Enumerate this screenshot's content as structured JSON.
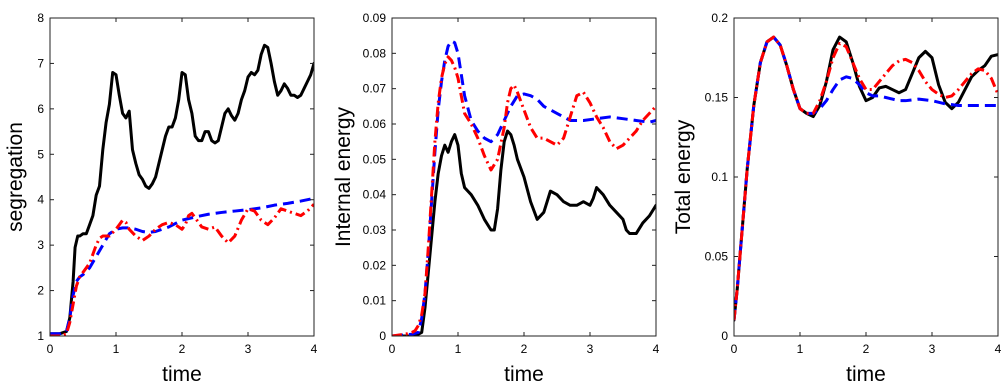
{
  "chart_data": [
    {
      "type": "line",
      "xlabel": "time",
      "ylabel": "segregation",
      "xlim": [
        0,
        4
      ],
      "ylim": [
        1,
        8
      ],
      "xticks": [
        "0",
        "1",
        "2",
        "3",
        "4"
      ],
      "yticks": [
        "1",
        "2",
        "3",
        "4",
        "5",
        "6",
        "7",
        "8"
      ],
      "grid": false,
      "series": [
        {
          "color": "#000000",
          "style": "solid",
          "x": [
            0,
            0.15,
            0.25,
            0.3,
            0.35,
            0.38,
            0.42,
            0.45,
            0.5,
            0.55,
            0.6,
            0.65,
            0.7,
            0.75,
            0.8,
            0.85,
            0.9,
            0.95,
            1.0,
            1.05,
            1.1,
            1.15,
            1.2,
            1.25,
            1.3,
            1.35,
            1.4,
            1.45,
            1.5,
            1.55,
            1.6,
            1.65,
            1.7,
            1.75,
            1.8,
            1.85,
            1.9,
            1.95,
            2.0,
            2.05,
            2.1,
            2.15,
            2.2,
            2.25,
            2.3,
            2.35,
            2.4,
            2.45,
            2.5,
            2.55,
            2.6,
            2.65,
            2.7,
            2.75,
            2.8,
            2.85,
            2.9,
            2.95,
            3.0,
            3.05,
            3.1,
            3.15,
            3.2,
            3.25,
            3.3,
            3.35,
            3.4,
            3.45,
            3.5,
            3.55,
            3.6,
            3.65,
            3.7,
            3.75,
            3.8,
            3.85,
            3.9,
            3.95,
            4.0
          ],
          "y": [
            1.05,
            1.05,
            1.1,
            1.4,
            2.2,
            2.95,
            3.2,
            3.2,
            3.25,
            3.25,
            3.45,
            3.65,
            4.1,
            4.3,
            5.1,
            5.7,
            6.1,
            6.8,
            6.75,
            6.3,
            5.9,
            5.8,
            5.95,
            5.1,
            4.8,
            4.55,
            4.45,
            4.3,
            4.25,
            4.35,
            4.5,
            4.8,
            5.1,
            5.4,
            5.6,
            5.6,
            5.8,
            6.2,
            6.8,
            6.75,
            6.2,
            5.9,
            5.4,
            5.3,
            5.3,
            5.5,
            5.5,
            5.3,
            5.25,
            5.3,
            5.6,
            5.9,
            6.0,
            5.85,
            5.75,
            5.9,
            6.2,
            6.4,
            6.7,
            6.8,
            6.75,
            6.85,
            7.2,
            7.4,
            7.35,
            7.0,
            6.6,
            6.3,
            6.4,
            6.55,
            6.45,
            6.3,
            6.3,
            6.25,
            6.3,
            6.45,
            6.6,
            6.75,
            7.0
          ]
        },
        {
          "color": "#0000ff",
          "style": "dashed",
          "x": [
            0,
            0.15,
            0.25,
            0.3,
            0.35,
            0.4,
            0.45,
            0.5,
            0.6,
            0.7,
            0.8,
            0.9,
            1.0,
            1.1,
            1.2,
            1.3,
            1.4,
            1.5,
            1.6,
            1.8,
            2.0,
            2.2,
            2.4,
            2.6,
            2.8,
            3.0,
            3.2,
            3.4,
            3.6,
            3.8,
            4.0
          ],
          "y": [
            1.05,
            1.05,
            1.1,
            1.4,
            1.9,
            2.2,
            2.3,
            2.35,
            2.5,
            2.75,
            3.0,
            3.25,
            3.35,
            3.38,
            3.38,
            3.35,
            3.3,
            3.28,
            3.3,
            3.4,
            3.55,
            3.62,
            3.68,
            3.72,
            3.75,
            3.78,
            3.82,
            3.88,
            3.92,
            3.97,
            4.03
          ]
        },
        {
          "color": "#ff0000",
          "style": "dashdot",
          "x": [
            0,
            0.15,
            0.25,
            0.3,
            0.35,
            0.4,
            0.45,
            0.5,
            0.6,
            0.7,
            0.75,
            0.8,
            0.9,
            1.0,
            1.05,
            1.1,
            1.15,
            1.2,
            1.3,
            1.4,
            1.5,
            1.6,
            1.7,
            1.8,
            1.9,
            2.0,
            2.05,
            2.1,
            2.15,
            2.2,
            2.3,
            2.4,
            2.5,
            2.6,
            2.7,
            2.8,
            2.9,
            3.0,
            3.1,
            3.2,
            3.3,
            3.4,
            3.5,
            3.6,
            3.7,
            3.8,
            3.9,
            4.0
          ],
          "y": [
            1.0,
            1.0,
            1.05,
            1.3,
            1.7,
            2.1,
            2.3,
            2.4,
            2.6,
            3.0,
            3.15,
            3.2,
            3.2,
            3.35,
            3.45,
            3.55,
            3.5,
            3.35,
            3.2,
            3.1,
            3.2,
            3.35,
            3.45,
            3.5,
            3.45,
            3.35,
            3.45,
            3.65,
            3.7,
            3.6,
            3.4,
            3.35,
            3.4,
            3.2,
            3.05,
            3.2,
            3.55,
            3.8,
            3.75,
            3.55,
            3.45,
            3.6,
            3.8,
            3.75,
            3.7,
            3.65,
            3.75,
            3.9
          ]
        }
      ]
    },
    {
      "type": "line",
      "xlabel": "time",
      "ylabel": "Internal energy",
      "xlim": [
        0,
        4
      ],
      "ylim": [
        0,
        0.09
      ],
      "xticks": [
        "0",
        "1",
        "2",
        "3",
        "4"
      ],
      "yticks": [
        "0",
        "0.01",
        "0.02",
        "0.03",
        "0.04",
        "0.05",
        "0.06",
        "0.07",
        "0.08",
        "0.09"
      ],
      "grid": false,
      "series": [
        {
          "color": "#000000",
          "style": "solid",
          "x": [
            0,
            0.3,
            0.4,
            0.45,
            0.5,
            0.55,
            0.6,
            0.65,
            0.7,
            0.75,
            0.8,
            0.85,
            0.9,
            0.95,
            1.0,
            1.05,
            1.1,
            1.2,
            1.3,
            1.4,
            1.5,
            1.55,
            1.6,
            1.65,
            1.7,
            1.75,
            1.8,
            1.85,
            1.9,
            2.0,
            2.1,
            2.2,
            2.3,
            2.4,
            2.5,
            2.6,
            2.7,
            2.8,
            2.9,
            3.0,
            3.05,
            3.1,
            3.2,
            3.3,
            3.4,
            3.5,
            3.55,
            3.6,
            3.7,
            3.8,
            3.9,
            4.0
          ],
          "y": [
            0,
            0,
            0.0005,
            0.001,
            0.008,
            0.018,
            0.028,
            0.038,
            0.046,
            0.051,
            0.054,
            0.052,
            0.055,
            0.057,
            0.054,
            0.046,
            0.042,
            0.04,
            0.037,
            0.033,
            0.03,
            0.03,
            0.036,
            0.047,
            0.055,
            0.058,
            0.057,
            0.054,
            0.05,
            0.045,
            0.038,
            0.033,
            0.035,
            0.041,
            0.04,
            0.038,
            0.037,
            0.037,
            0.038,
            0.037,
            0.039,
            0.042,
            0.04,
            0.037,
            0.035,
            0.033,
            0.03,
            0.029,
            0.029,
            0.032,
            0.034,
            0.037
          ]
        },
        {
          "color": "#0000ff",
          "style": "dashed",
          "x": [
            0,
            0.3,
            0.4,
            0.45,
            0.5,
            0.55,
            0.6,
            0.65,
            0.7,
            0.75,
            0.8,
            0.85,
            0.9,
            0.95,
            1.0,
            1.05,
            1.1,
            1.2,
            1.3,
            1.4,
            1.5,
            1.6,
            1.7,
            1.8,
            1.9,
            2.0,
            2.1,
            2.2,
            2.3,
            2.5,
            2.7,
            2.9,
            3.1,
            3.3,
            3.5,
            3.7,
            3.9,
            4.0
          ],
          "y": [
            0,
            0.0005,
            0.001,
            0.005,
            0.012,
            0.024,
            0.038,
            0.052,
            0.064,
            0.072,
            0.078,
            0.082,
            0.0835,
            0.083,
            0.08,
            0.074,
            0.068,
            0.061,
            0.058,
            0.056,
            0.055,
            0.057,
            0.061,
            0.065,
            0.068,
            0.0685,
            0.068,
            0.067,
            0.065,
            0.063,
            0.061,
            0.061,
            0.0615,
            0.062,
            0.0615,
            0.061,
            0.0605,
            0.061
          ]
        },
        {
          "color": "#ff0000",
          "style": "dashdot",
          "x": [
            0,
            0.2,
            0.3,
            0.35,
            0.4,
            0.45,
            0.5,
            0.55,
            0.6,
            0.65,
            0.7,
            0.75,
            0.8,
            0.85,
            0.9,
            0.95,
            1.0,
            1.05,
            1.1,
            1.2,
            1.3,
            1.4,
            1.5,
            1.6,
            1.7,
            1.75,
            1.8,
            1.85,
            1.9,
            2.0,
            2.1,
            2.2,
            2.3,
            2.4,
            2.5,
            2.6,
            2.7,
            2.8,
            2.9,
            3.0,
            3.1,
            3.2,
            3.3,
            3.4,
            3.5,
            3.6,
            3.7,
            3.8,
            3.9,
            4.0
          ],
          "y": [
            0,
            0.0005,
            0.001,
            0.0015,
            0.003,
            0.006,
            0.012,
            0.025,
            0.04,
            0.055,
            0.066,
            0.073,
            0.077,
            0.079,
            0.078,
            0.076,
            0.073,
            0.068,
            0.063,
            0.06,
            0.056,
            0.051,
            0.047,
            0.05,
            0.059,
            0.066,
            0.07,
            0.071,
            0.069,
            0.064,
            0.059,
            0.056,
            0.056,
            0.055,
            0.054,
            0.056,
            0.062,
            0.068,
            0.069,
            0.066,
            0.062,
            0.059,
            0.055,
            0.053,
            0.054,
            0.056,
            0.058,
            0.061,
            0.063,
            0.065
          ]
        }
      ]
    },
    {
      "type": "line",
      "xlabel": "time",
      "ylabel": "Total energy",
      "xlim": [
        0,
        4
      ],
      "ylim": [
        0,
        0.2
      ],
      "xticks": [
        "0",
        "1",
        "2",
        "3",
        "4"
      ],
      "yticks": [
        "0",
        "0.05",
        "0.1",
        "0.15",
        "0.2"
      ],
      "grid": false,
      "series": [
        {
          "color": "#000000",
          "style": "solid",
          "x": [
            0,
            0.05,
            0.1,
            0.15,
            0.2,
            0.3,
            0.4,
            0.5,
            0.6,
            0.7,
            0.8,
            0.9,
            1.0,
            1.1,
            1.2,
            1.3,
            1.4,
            1.5,
            1.6,
            1.7,
            1.8,
            1.9,
            2.0,
            2.1,
            2.2,
            2.3,
            2.4,
            2.5,
            2.6,
            2.7,
            2.8,
            2.9,
            3.0,
            3.1,
            3.2,
            3.3,
            3.4,
            3.5,
            3.6,
            3.7,
            3.8,
            3.9,
            4.0
          ],
          "y": [
            0.01,
            0.03,
            0.055,
            0.08,
            0.105,
            0.145,
            0.172,
            0.185,
            0.188,
            0.183,
            0.17,
            0.155,
            0.143,
            0.14,
            0.138,
            0.145,
            0.16,
            0.18,
            0.188,
            0.185,
            0.172,
            0.157,
            0.148,
            0.15,
            0.156,
            0.157,
            0.155,
            0.153,
            0.155,
            0.165,
            0.175,
            0.179,
            0.175,
            0.158,
            0.147,
            0.143,
            0.147,
            0.155,
            0.163,
            0.167,
            0.17,
            0.176,
            0.177
          ]
        },
        {
          "color": "#0000ff",
          "style": "dashed",
          "x": [
            0,
            0.05,
            0.1,
            0.15,
            0.2,
            0.3,
            0.4,
            0.5,
            0.6,
            0.7,
            0.8,
            0.9,
            1.0,
            1.1,
            1.2,
            1.3,
            1.4,
            1.5,
            1.6,
            1.7,
            1.8,
            1.9,
            2.0,
            2.1,
            2.2,
            2.3,
            2.4,
            2.5,
            2.6,
            2.8,
            3.0,
            3.2,
            3.4,
            3.6,
            3.8,
            4.0
          ],
          "y": [
            0.01,
            0.03,
            0.055,
            0.08,
            0.105,
            0.145,
            0.172,
            0.185,
            0.188,
            0.183,
            0.17,
            0.155,
            0.143,
            0.14,
            0.14,
            0.143,
            0.148,
            0.155,
            0.161,
            0.163,
            0.162,
            0.158,
            0.153,
            0.151,
            0.151,
            0.15,
            0.149,
            0.148,
            0.148,
            0.149,
            0.148,
            0.146,
            0.145,
            0.145,
            0.145,
            0.145
          ]
        },
        {
          "color": "#ff0000",
          "style": "dashdot",
          "x": [
            0,
            0.05,
            0.1,
            0.15,
            0.2,
            0.3,
            0.4,
            0.5,
            0.6,
            0.7,
            0.8,
            0.9,
            1.0,
            1.1,
            1.2,
            1.3,
            1.4,
            1.5,
            1.6,
            1.7,
            1.8,
            1.9,
            2.0,
            2.1,
            2.2,
            2.3,
            2.4,
            2.5,
            2.6,
            2.7,
            2.8,
            2.9,
            3.0,
            3.1,
            3.2,
            3.3,
            3.4,
            3.5,
            3.6,
            3.7,
            3.8,
            3.9,
            4.0
          ],
          "y": [
            0.01,
            0.03,
            0.055,
            0.08,
            0.105,
            0.145,
            0.172,
            0.185,
            0.188,
            0.183,
            0.17,
            0.155,
            0.143,
            0.14,
            0.14,
            0.148,
            0.16,
            0.175,
            0.184,
            0.182,
            0.172,
            0.162,
            0.155,
            0.155,
            0.16,
            0.165,
            0.17,
            0.173,
            0.174,
            0.172,
            0.167,
            0.16,
            0.155,
            0.152,
            0.15,
            0.151,
            0.155,
            0.16,
            0.165,
            0.168,
            0.167,
            0.162,
            0.152
          ]
        }
      ]
    }
  ]
}
